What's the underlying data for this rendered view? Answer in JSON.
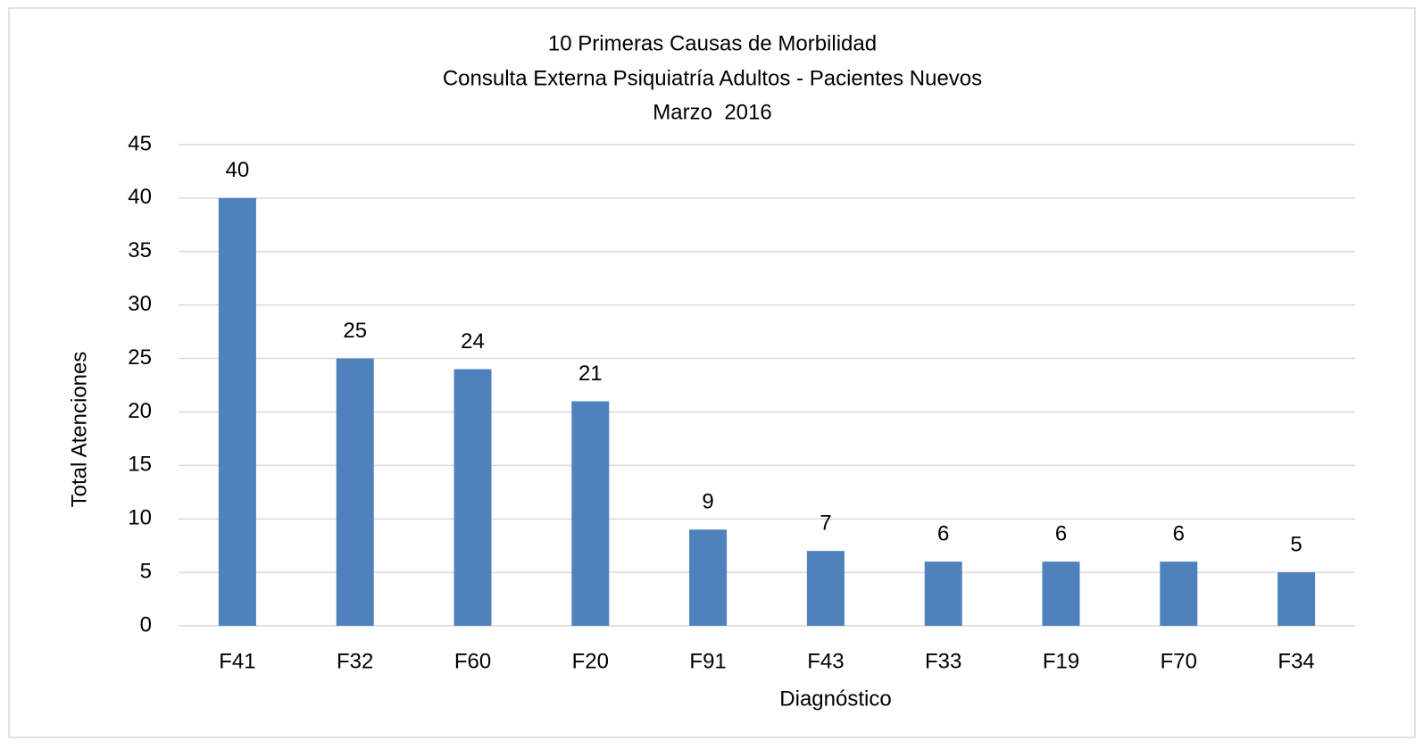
{
  "chart_data": {
    "type": "bar",
    "title": [
      "10 Primeras Causas de Morbilidad",
      "Consulta Externa Psiquiatría Adultos - Pacientes Nuevos",
      "Marzo  2016"
    ],
    "x_label": "Diagnóstico",
    "y_label": "Total Atenciones",
    "categories": [
      "F41",
      "F32",
      "F60",
      "F20",
      "F91",
      "F43",
      "F33",
      "F19",
      "F70",
      "F34"
    ],
    "values": [
      40,
      25,
      24,
      21,
      9,
      7,
      6,
      6,
      6,
      5
    ],
    "color": "#4f81bd",
    "ylim": [
      0,
      45
    ],
    "yticks": [
      0,
      5,
      10,
      15,
      20,
      25,
      30,
      35,
      40,
      45
    ],
    "grid": true
  }
}
